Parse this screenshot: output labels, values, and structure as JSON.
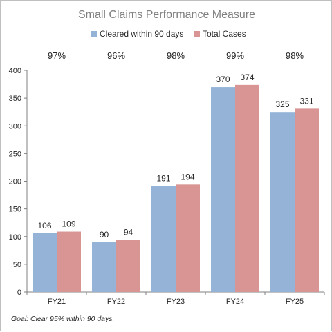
{
  "chart_data": {
    "type": "bar",
    "title": "Small Claims Performance Measure",
    "categories": [
      "FY21",
      "FY22",
      "FY23",
      "FY24",
      "FY25"
    ],
    "series": [
      {
        "name": "Cleared within 90 days",
        "values": [
          106,
          90,
          191,
          370,
          325
        ],
        "color": "#95b3d7"
      },
      {
        "name": "Total Cases",
        "values": [
          109,
          94,
          194,
          374,
          331
        ],
        "color": "#d99594"
      }
    ],
    "percent_labels": [
      "97%",
      "96%",
      "98%",
      "99%",
      "98%"
    ],
    "ylim": [
      0,
      400
    ],
    "yticks": [
      0,
      50,
      100,
      150,
      200,
      250,
      300,
      350,
      400
    ],
    "xlabel": "",
    "ylabel": "",
    "grid": false,
    "legend": "top-center",
    "footnote": "Goal:  Clear 95% within 90 days."
  }
}
